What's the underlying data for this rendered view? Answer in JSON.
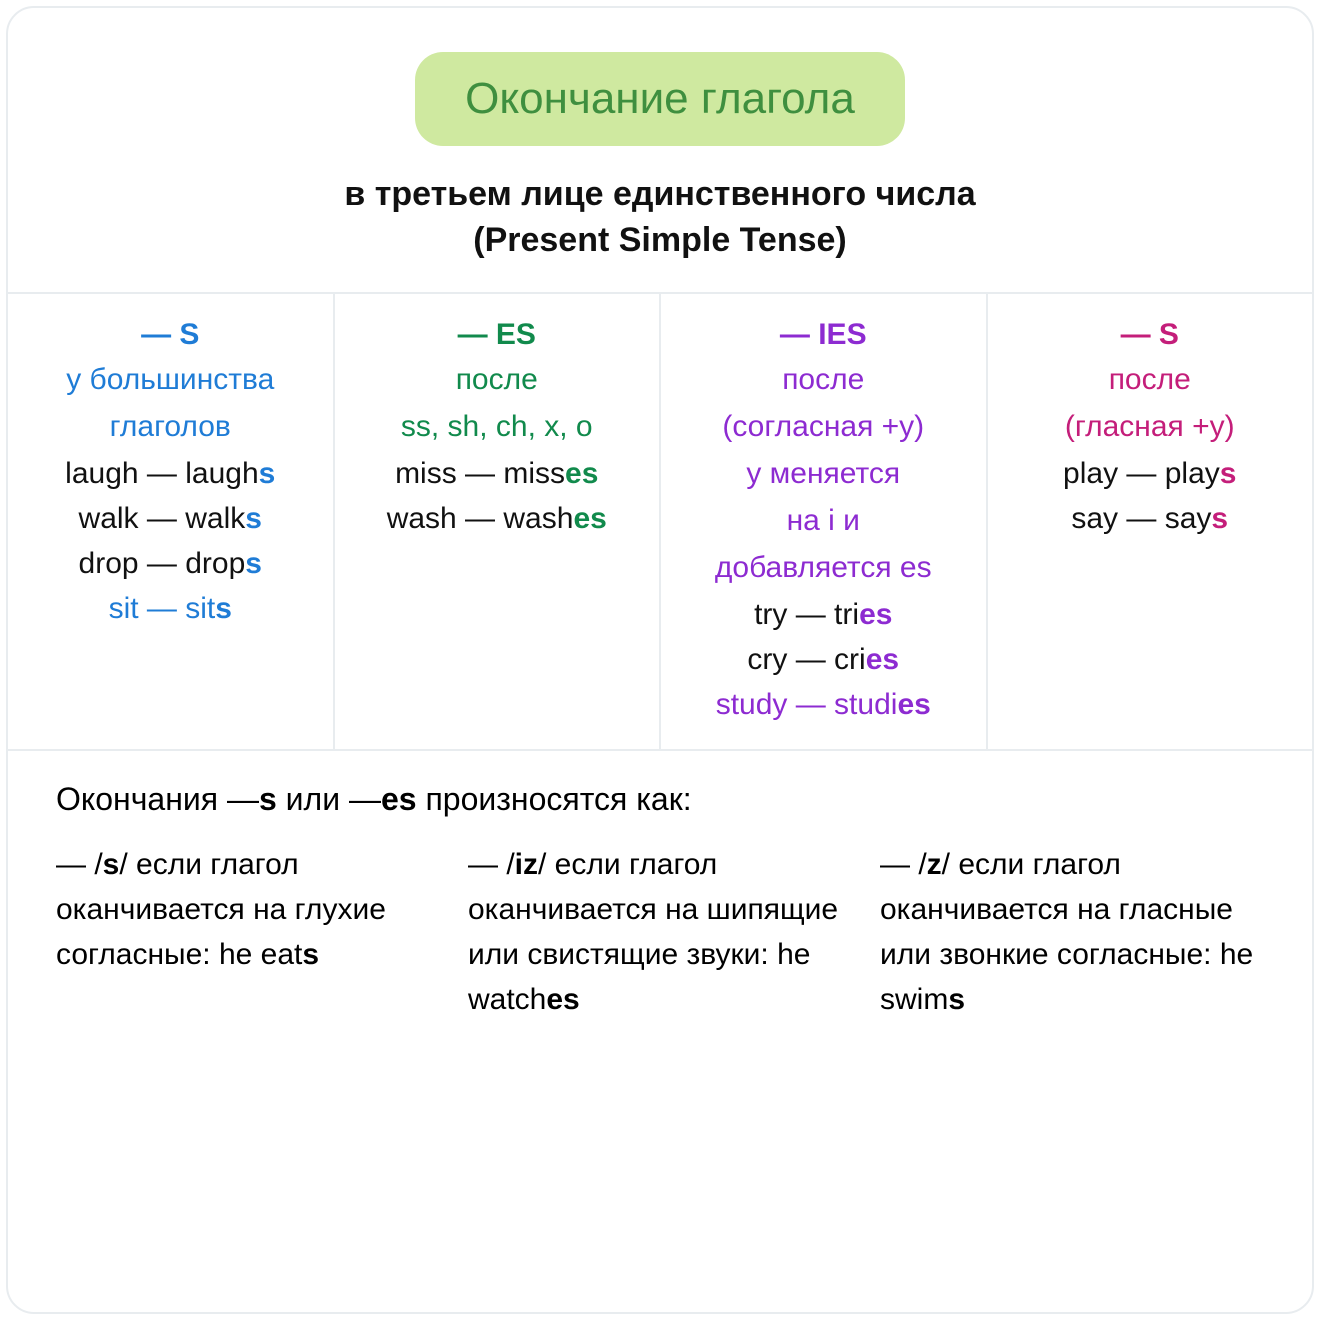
{
  "colors": {
    "pill_bg": "#cfe9a0",
    "pill_text": "#3f8f3f",
    "border": "#e8ecef",
    "text": "#111111",
    "blue": "#1f7cd6",
    "green": "#118a4c",
    "purple": "#8d2bd1",
    "magenta": "#c41e7a"
  },
  "header": {
    "title": "Окончание глагола",
    "subtitle_line1": "в третьем лице единственного числа",
    "subtitle_line2": "(Present Simple Tense)"
  },
  "columns": [
    {
      "color": "blue",
      "suffix": "— S",
      "rules": [
        "у большинства",
        "глаголов"
      ],
      "examples": [
        {
          "base": "laugh — laugh",
          "hl": "s",
          "base_colored": false
        },
        {
          "base": "walk — walk",
          "hl": "s",
          "base_colored": false
        },
        {
          "base": "drop — drop",
          "hl": "s",
          "base_colored": false
        },
        {
          "base": "sit — sit",
          "hl": "s",
          "base_colored": true
        }
      ]
    },
    {
      "color": "green",
      "suffix": "— ES",
      "rules": [
        "после",
        "ss, sh, ch, x, o"
      ],
      "examples": [
        {
          "base": "miss — miss",
          "hl": "es",
          "base_colored": false
        },
        {
          "base": "wash — wash",
          "hl": "es",
          "base_colored": false
        }
      ]
    },
    {
      "color": "purple",
      "suffix": "— IES",
      "rules": [
        "после",
        "(согласная +y)",
        "y меняется",
        "на i и",
        "добавляется es"
      ],
      "examples": [
        {
          "base": "try — tri",
          "hl": "es",
          "base_colored": false
        },
        {
          "base": "cry — cri",
          "hl": "es",
          "base_colored": false
        },
        {
          "base": "study — studi",
          "hl": "es",
          "base_colored": true
        }
      ]
    },
    {
      "color": "magenta",
      "suffix": "— S",
      "rules": [
        "после",
        "(гласная +y)"
      ],
      "examples": [
        {
          "base": "play — play",
          "hl": "s",
          "base_colored": false
        },
        {
          "base": "say — say",
          "hl": "s",
          "base_colored": false
        }
      ]
    }
  ],
  "footer": {
    "title_pre": "Окончания —",
    "title_b1": "s",
    "title_mid": " или —",
    "title_b2": "es",
    "title_post": " произносятся как:",
    "items": [
      {
        "pre": "— /",
        "b1": "s",
        "mid": "/ если глагол оканчивается на глухие согласные: he eat",
        "b2": "s",
        "post": ""
      },
      {
        "pre": "— /",
        "b1": "iz",
        "mid": "/ если глагол оканчивается на шипящие или свистящие звуки: he watch",
        "b2": "es",
        "post": ""
      },
      {
        "pre": "— /",
        "b1": "z",
        "mid": "/ если глагол оканчивается на гласные или звонкие согласные: he swim",
        "b2": "s",
        "post": ""
      }
    ]
  }
}
